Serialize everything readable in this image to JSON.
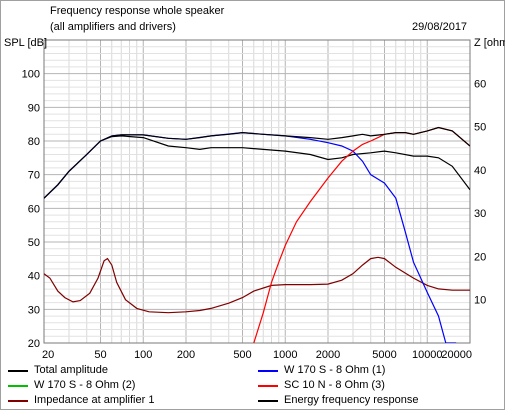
{
  "header": {
    "title": "Frequency response whole speaker",
    "subtitle": "(all amplifiers and drivers)",
    "date": "29/08/2017"
  },
  "chart_data": {
    "type": "line",
    "title": "Frequency response whole speaker",
    "subtitle": "(all amplifiers and drivers)",
    "xscale": "log",
    "xlim": [
      20,
      20000
    ],
    "x_ticks": [
      20,
      50,
      100,
      200,
      500,
      1000,
      2000,
      5000,
      10000,
      20000
    ],
    "x_tick_labels": [
      "20",
      "50",
      "100",
      "200",
      "500",
      "1000",
      "2000",
      "5000",
      "10000",
      "20000"
    ],
    "ylabel_left": "SPL [dB]",
    "ylim_left": [
      20,
      110
    ],
    "y_ticks_left": [
      20,
      30,
      40,
      50,
      60,
      70,
      80,
      90,
      100
    ],
    "ylabel_right": "Z [ohm",
    "ylim_right": [
      0,
      70
    ],
    "y_ticks_right": [
      10,
      20,
      30,
      40,
      50,
      60
    ],
    "grid": true,
    "series": [
      {
        "name": "Total amplitude",
        "color": "#000000",
        "axis": "left",
        "x": [
          20,
          25,
          30,
          40,
          50,
          60,
          70,
          100,
          150,
          200,
          250,
          300,
          400,
          500,
          700,
          1000,
          1500,
          2000,
          2500,
          3000,
          3500,
          4000,
          5000,
          6000,
          7000,
          8000,
          10000,
          12000,
          15000,
          20000
        ],
        "y": [
          63,
          67,
          71,
          76,
          80,
          81.5,
          81.8,
          81.8,
          80.8,
          80.5,
          81,
          81.5,
          82,
          82.5,
          82,
          81.5,
          81,
          80.5,
          81,
          81.5,
          82,
          81.5,
          82,
          82.5,
          82.5,
          82,
          83,
          84,
          83,
          78.5
        ]
      },
      {
        "name": "Energy frequency response",
        "color": "#000000",
        "axis": "left",
        "x": [
          20,
          25,
          30,
          40,
          50,
          60,
          70,
          100,
          150,
          200,
          250,
          300,
          400,
          500,
          700,
          1000,
          1500,
          2000,
          2500,
          3000,
          4000,
          5000,
          6000,
          8000,
          10000,
          12000,
          15000,
          20000
        ],
        "y": [
          63,
          67,
          71,
          76,
          80,
          81.3,
          81.5,
          81,
          78.5,
          78,
          77.5,
          78,
          78,
          78,
          77.5,
          77,
          76,
          74.5,
          75,
          76,
          76.5,
          77,
          76.5,
          75.5,
          75.5,
          75,
          72.5,
          65.5
        ]
      },
      {
        "name": "W 170 S - 8 Ohm (1)",
        "color": "#0000ff",
        "axis": "left",
        "x": [
          20,
          25,
          30,
          40,
          50,
          60,
          70,
          100,
          150,
          200,
          300,
          500,
          700,
          1000,
          1500,
          2000,
          2500,
          3000,
          3500,
          4000,
          5000,
          6000,
          7000,
          8000,
          10000,
          12000,
          13500,
          16000
        ],
        "y": [
          63,
          67,
          71,
          76,
          80,
          81.5,
          81.8,
          81.8,
          80.8,
          80.5,
          81.5,
          82.5,
          82,
          81.5,
          80.5,
          79.5,
          78.5,
          77,
          74,
          70,
          67.5,
          63,
          53,
          44,
          35,
          28,
          20,
          20
        ]
      },
      {
        "name": "SC 10 N - 8 Ohm (3)",
        "color": "#ff0000",
        "axis": "left",
        "x": [
          600,
          700,
          800,
          900,
          1000,
          1200,
          1500,
          2000,
          2500,
          3000,
          3500,
          4000,
          4500,
          5000,
          6000,
          7000,
          8000,
          10000,
          12000,
          15000,
          20000
        ],
        "y": [
          20,
          29,
          38,
          44,
          49,
          56,
          62,
          69,
          74,
          77,
          79,
          80,
          81,
          82,
          82.5,
          82.5,
          82,
          83,
          84,
          83,
          78.5
        ]
      },
      {
        "name": "Impedance at amplifier 1",
        "color": "#800000",
        "axis": "right",
        "x": [
          20,
          22,
          25,
          28,
          32,
          36,
          42,
          48,
          53,
          56,
          60,
          65,
          75,
          90,
          110,
          150,
          200,
          250,
          300,
          400,
          500,
          600,
          800,
          1000,
          1500,
          2000,
          2500,
          3000,
          3500,
          4000,
          4500,
          5000,
          6000,
          8000,
          10000,
          12000,
          15000,
          20000
        ],
        "y": [
          16,
          15,
          12,
          10.5,
          9.5,
          9.8,
          11.5,
          15,
          19,
          19.5,
          18,
          14,
          10,
          8,
          7.2,
          7,
          7.2,
          7.5,
          8,
          9.2,
          10.5,
          12,
          13.3,
          13.5,
          13.5,
          13.6,
          14.5,
          16,
          18,
          19.5,
          19.8,
          19.5,
          17.5,
          15,
          13.3,
          12.5,
          12.2,
          12.2
        ]
      },
      {
        "name": "W 170 S - 8 Ohm (2)",
        "color": "#00c000",
        "axis": "left",
        "x": [],
        "y": []
      }
    ],
    "legend_position": "bottom"
  }
}
